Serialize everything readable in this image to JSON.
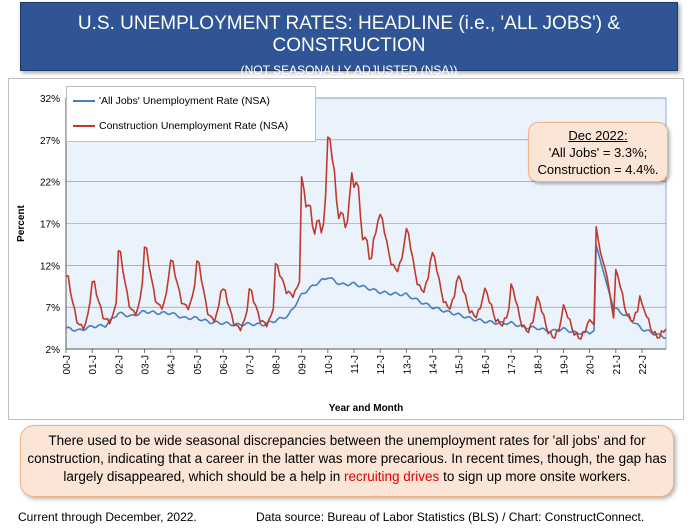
{
  "header": {
    "title": "U.S. UNEMPLOYMENT RATES: HEADLINE (i.e., 'ALL JOBS') & CONSTRUCTION",
    "subtitle": "(NOT SEASONALLY ADJUSTED (NSA))"
  },
  "callout": {
    "line1": "Dec 2022:",
    "line2": "'All Jobs' = 3.3%;",
    "line3": "Construction = 4.4%."
  },
  "bottom_text": {
    "part1": "There used to be wide seasonal discrepancies between the unemployment rates for 'all jobs' and for construction, indicating that a career in the latter was more precarious. In recent times, though, the gap has largely disappeared, which should be a help in ",
    "highlight": "recruiting drives",
    "part2": " to sign up more onsite workers."
  },
  "footer": {
    "left": "Current through December, 2022.",
    "right": "Data source: Bureau of Labor Statistics (BLS) / Chart: ConstructConnect."
  },
  "colors": {
    "all_jobs": "#4a7ebb",
    "construction": "#c0392b",
    "header_bg": "#2f5597"
  },
  "chart_data": {
    "type": "line",
    "title": "",
    "xlabel": "Year and Month",
    "ylabel": "Percent",
    "ylim": [
      2,
      32
    ],
    "yticks": [
      "32%",
      "27%",
      "22%",
      "17%",
      "12%",
      "7%",
      "2%"
    ],
    "ytick_values": [
      32,
      27,
      22,
      17,
      12,
      7,
      2
    ],
    "xticks": [
      "00-J",
      "01-J",
      "02-J",
      "03-J",
      "04-J",
      "05-J",
      "06-J",
      "07-J",
      "08-J",
      "09-J",
      "10-J",
      "11-J",
      "12-J",
      "13-J",
      "14-J",
      "15-J",
      "16-J",
      "17-J",
      "18-J",
      "19-J",
      "20-J",
      "21-J",
      "22-J"
    ],
    "x_start": "2000-01",
    "x_end": "2022-12",
    "grid": true,
    "legend": "top-left",
    "series": [
      {
        "name": "'All Jobs' Unemployment Rate (NSA)",
        "annual_jan_values": [
          4.5,
          4.7,
          6.3,
          6.5,
          6.3,
          5.7,
          5.1,
          5.0,
          5.4,
          8.5,
          10.6,
          9.8,
          8.8,
          8.5,
          7.0,
          6.1,
          5.3,
          5.1,
          4.5,
          4.4,
          4.0,
          6.8,
          4.4
        ],
        "annual_jul_values": [
          4.2,
          4.8,
          5.9,
          6.3,
          5.7,
          5.2,
          4.9,
          4.9,
          6.0,
          9.7,
          9.7,
          9.3,
          8.6,
          7.7,
          6.5,
          5.6,
          5.1,
          4.6,
          4.1,
          3.9,
          10.5,
          5.7,
          3.8
        ],
        "dec_2022": 3.3,
        "peak_2020": 14.4
      },
      {
        "name": "Construction Unemployment Rate (NSA)",
        "annual_peak_values": [
          10.7,
          10.0,
          13.7,
          14.1,
          12.5,
          12.4,
          9.0,
          9.0,
          12.0,
          21.4,
          27.1,
          22.5,
          17.8,
          16.1,
          13.2,
          10.4,
          8.9,
          9.4,
          7.9,
          6.9,
          16.6,
          11.1,
          7.0
        ],
        "annual_trough_values": [
          4.6,
          5.3,
          6.3,
          7.0,
          7.0,
          5.5,
          4.5,
          5.0,
          8.5,
          16.5,
          17.2,
          13.5,
          11.5,
          9.0,
          7.0,
          6.0,
          5.0,
          4.2,
          3.5,
          3.4,
          5.5,
          5.5,
          3.5
        ],
        "dec_2022": 4.4,
        "peak_2010": 27.1,
        "peak_2020": 16.6
      }
    ]
  }
}
